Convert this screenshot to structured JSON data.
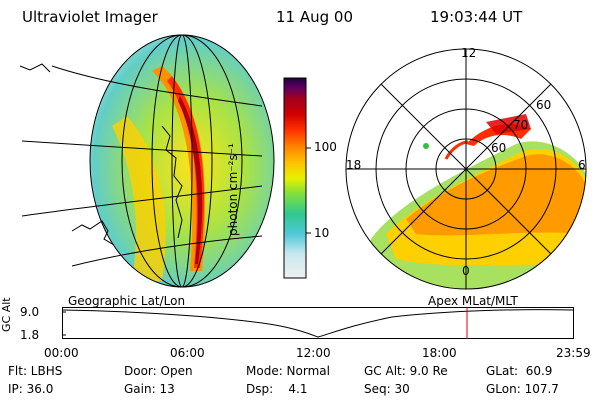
{
  "header": {
    "instrument": "Ultraviolet Imager",
    "date": "11 Aug 00",
    "time": "19:03:44 UT"
  },
  "colorbar": {
    "unit_label": "photon cm⁻²s⁻¹",
    "ticks": [
      "100",
      "10"
    ],
    "colors": [
      "#f0f0f0",
      "#c8e8f0",
      "#50c8d8",
      "#30c890",
      "#80e040",
      "#e8f000",
      "#ffc000",
      "#ff8000",
      "#ff3000",
      "#d00000",
      "#a00020",
      "#600060",
      "#200040"
    ]
  },
  "left_map": {
    "caption": "Geographic Lat/Lon"
  },
  "right_map": {
    "caption": "Apex MLat/MLT",
    "mlt_labels": {
      "top": "12",
      "left": "18",
      "right": "6",
      "bottom": "0"
    },
    "mlat_labels": [
      "60",
      "70",
      "60"
    ]
  },
  "timeline": {
    "y_label": "GC Alt",
    "y_ticks": [
      "9.0",
      "1.8"
    ],
    "x_ticks": [
      "00:00",
      "06:00",
      "12:00",
      "18:00",
      "23:59"
    ],
    "marker_color": "#e00000"
  },
  "info": {
    "col1": [
      "Flt: LBHS",
      "IP: 36.0"
    ],
    "col2": [
      "Door: Open",
      "Gain: 13"
    ],
    "col3": [
      "Mode: Normal",
      "Dsp:    4.1"
    ],
    "col4": [
      "GC Alt: 9.0 Re",
      "Seq: 30"
    ],
    "col5": [
      "GLat:  60.9",
      "GLon: 107.7"
    ]
  }
}
